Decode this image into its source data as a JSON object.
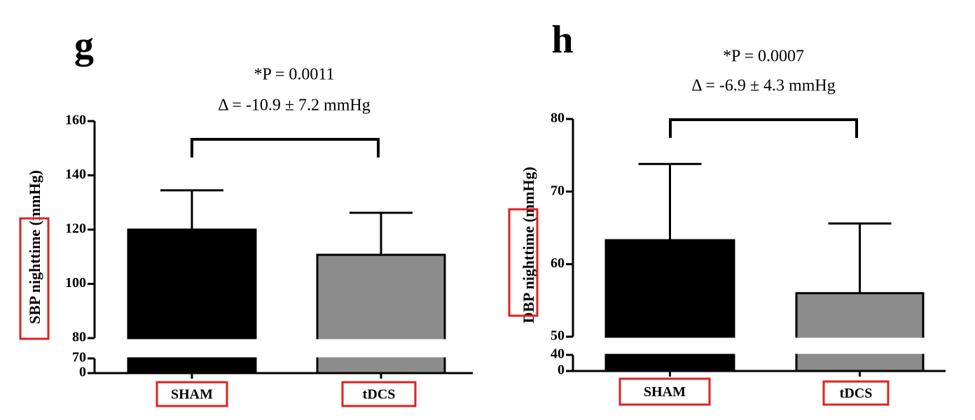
{
  "chart_data": [
    {
      "type": "bar",
      "panel_label": "g",
      "ylabel": "SBP nighttime (mmHg)",
      "annotations": [
        "*P = 0.0011",
        "Δ = -10.9 ± 7.2 mmHg"
      ],
      "categories": [
        "SHAM",
        "tDCS"
      ],
      "series": [
        {
          "values": [
            120,
            110.7
          ],
          "errors": [
            14.5,
            15.5
          ],
          "colors": [
            "#000000",
            "#8c8c8c"
          ]
        }
      ],
      "ylim": [
        0,
        160
      ],
      "ybreak": [
        70,
        80
      ],
      "yticks": [
        0,
        70,
        80,
        100,
        120,
        140,
        160
      ]
    },
    {
      "type": "bar",
      "panel_label": "h",
      "ylabel": "DBP nighttime (mmHg)",
      "annotations": [
        "*P = 0.0007",
        "Δ = -6.9 ± 4.3 mmHg"
      ],
      "categories": [
        "SHAM",
        "tDCS"
      ],
      "series": [
        {
          "values": [
            63.3,
            56
          ],
          "errors": [
            10.5,
            9.6
          ],
          "colors": [
            "#000000",
            "#8c8c8c"
          ]
        }
      ],
      "ylim": [
        0,
        80
      ],
      "ybreak": [
        40,
        50
      ],
      "yticks": [
        0,
        40,
        50,
        60,
        70,
        80
      ]
    }
  ]
}
